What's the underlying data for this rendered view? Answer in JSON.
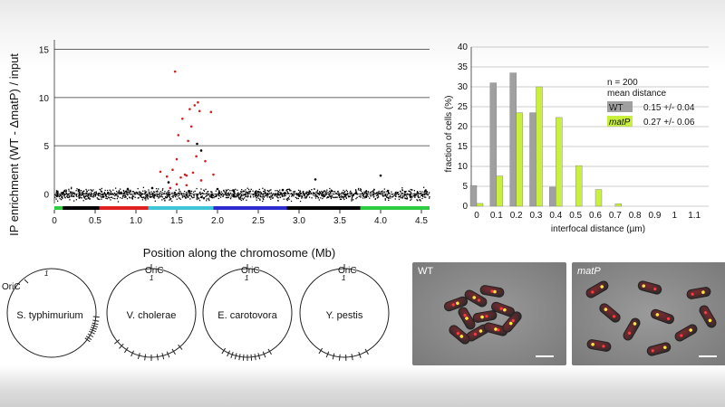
{
  "chart_data": [
    {
      "type": "scatter",
      "title": "",
      "xlabel": "Position along the chromosome (Mb)",
      "ylabel": "IP enrichment  (WT - ΔmatP) / input",
      "xlim": [
        0,
        4.6
      ],
      "ylim": [
        -1,
        16
      ],
      "xticks": [
        0,
        0.5,
        1.0,
        1.5,
        2.0,
        2.5,
        3.0,
        3.5,
        4.0,
        4.5
      ],
      "xtick_labels": [
        "0",
        "0.5",
        "1.0",
        "1.5",
        "2.0",
        "2.5",
        "3.0",
        "3.5",
        "4.0",
        "4.5"
      ],
      "yticks": [
        0,
        5,
        10,
        15
      ],
      "ytick_labels": [
        "0",
        "5",
        "10",
        "15"
      ],
      "grid": "horizontal",
      "series": [
        {
          "color": "#000000",
          "description_type": "background noise points near zero across 0–4.6 Mb",
          "points": [
            [
              0.1,
              0.1
            ],
            [
              0.3,
              0.4
            ],
            [
              0.6,
              -0.3
            ],
            [
              0.9,
              0.5
            ],
            [
              1.2,
              0.6
            ],
            [
              1.4,
              1.2
            ],
            [
              1.65,
              0.3
            ],
            [
              1.75,
              5.2
            ],
            [
              1.8,
              4.5
            ],
            [
              2.0,
              0.5
            ],
            [
              2.2,
              0.3
            ],
            [
              2.5,
              0.2
            ],
            [
              2.8,
              0.4
            ],
            [
              3.0,
              -0.2
            ],
            [
              3.2,
              1.5
            ],
            [
              3.4,
              0.3
            ],
            [
              3.7,
              0.1
            ],
            [
              4.0,
              1.9
            ],
            [
              4.3,
              0.2
            ],
            [
              4.55,
              0.3
            ]
          ]
        },
        {
          "color": "#d22020",
          "description_type": "enriched sites in the Ter region",
          "points": [
            [
              1.3,
              2.3
            ],
            [
              1.38,
              1.8
            ],
            [
              1.42,
              0.6
            ],
            [
              1.45,
              2.5
            ],
            [
              1.48,
              12.7
            ],
            [
              1.5,
              3.6
            ],
            [
              1.52,
              6.1
            ],
            [
              1.55,
              1.7
            ],
            [
              1.57,
              7.8
            ],
            [
              1.6,
              2.0
            ],
            [
              1.62,
              1.9
            ],
            [
              1.64,
              5.5
            ],
            [
              1.66,
              8.8
            ],
            [
              1.68,
              7.0
            ],
            [
              1.7,
              2.2
            ],
            [
              1.72,
              9.2
            ],
            [
              1.74,
              3.9
            ],
            [
              1.76,
              9.5
            ],
            [
              1.78,
              8.6
            ],
            [
              1.8,
              1.4
            ],
            [
              1.62,
              0.9
            ],
            [
              1.5,
              1.0
            ],
            [
              1.85,
              3.4
            ],
            [
              1.92,
              8.5
            ],
            [
              1.95,
              2.0
            ]
          ]
        }
      ],
      "chromosome_bar": [
        {
          "from": 0,
          "to": 0.1,
          "color": "#2ecc40"
        },
        {
          "from": 0.1,
          "to": 0.55,
          "color": "#000000"
        },
        {
          "from": 0.55,
          "to": 1.15,
          "color": "#e02020"
        },
        {
          "from": 1.15,
          "to": 1.95,
          "color": "#3ec6d8"
        },
        {
          "from": 1.95,
          "to": 2.85,
          "color": "#2b2bd0"
        },
        {
          "from": 2.85,
          "to": 3.75,
          "color": "#000000"
        },
        {
          "from": 3.75,
          "to": 4.6,
          "color": "#2ecc40"
        }
      ]
    },
    {
      "type": "bar",
      "title": "",
      "xlabel": "interfocal distance (µm)",
      "ylabel": "fraction of cells (%)",
      "ylim": [
        0,
        40
      ],
      "yticks": [
        0,
        5,
        10,
        15,
        20,
        25,
        30,
        35,
        40
      ],
      "ytick_labels": [
        "0",
        "5",
        "10",
        "15",
        "20",
        "25",
        "30",
        "35",
        "40"
      ],
      "categories": [
        "0",
        "0.1",
        "0.2",
        "0.3",
        "0.4",
        "0.5",
        "0.6",
        "0.7",
        "0.8",
        "0.9",
        "1",
        "1.1"
      ],
      "grid": "horizontal",
      "legend_position": "right",
      "legend_header": [
        "n = 200",
        "mean distance"
      ],
      "series": [
        {
          "name": "WT",
          "stat": "0.15 +/- 0.04",
          "color": "#a0a0a0",
          "values": [
            5.2,
            31,
            33.5,
            23.5,
            4.8,
            0,
            0,
            0,
            0,
            0,
            0,
            0
          ]
        },
        {
          "name": "matP",
          "stat": "0.27 +/- 0.06",
          "color": "#c8f03c",
          "values": [
            0.7,
            7.6,
            23.5,
            30,
            22.3,
            10.2,
            4.2,
            0.6,
            0,
            0,
            0,
            0
          ]
        }
      ]
    }
  ],
  "circle_maps": [
    {
      "species": "S. typhimurium",
      "origin": "OriC"
    },
    {
      "species": "V. cholerae",
      "origin": "OriC"
    },
    {
      "species": "E. carotovora",
      "origin": "OriC"
    },
    {
      "species": "Y. pestis",
      "origin": "OriC"
    }
  ],
  "micrographs": [
    {
      "label": "WT"
    },
    {
      "label": "matP"
    }
  ]
}
